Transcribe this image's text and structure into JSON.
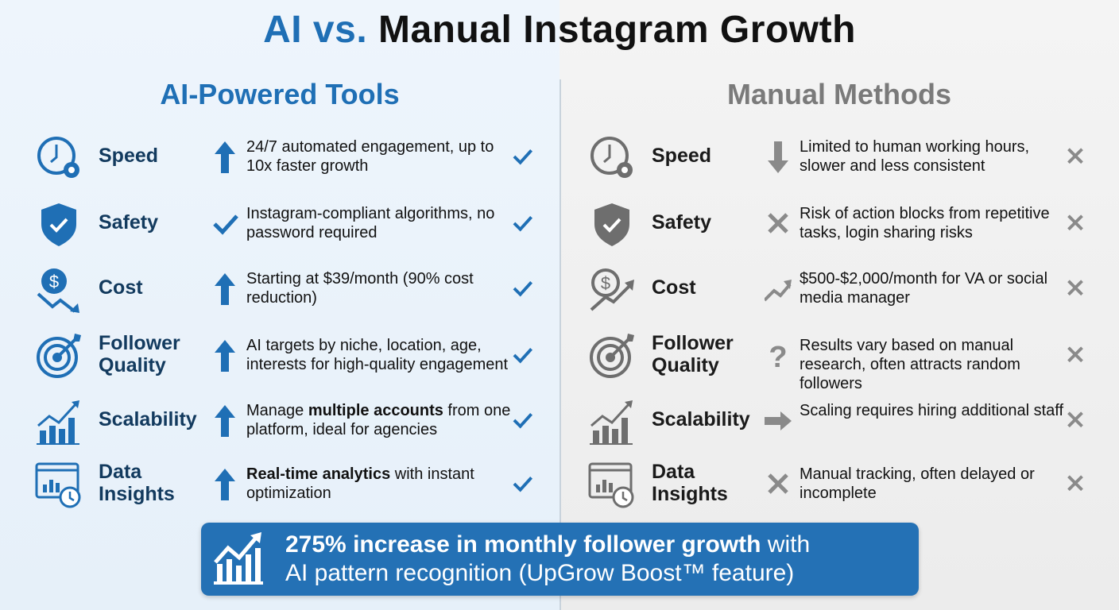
{
  "title": {
    "part1": "AI vs.",
    "part2": "Manual Instagram Growth"
  },
  "colors": {
    "ai_blue": "#1f6fb5",
    "manual_grey": "#7a7a7a",
    "banner": "#2471b5"
  },
  "ai": {
    "heading": "AI-Powered Tools",
    "rows": [
      {
        "icon": "clock-gear-icon",
        "label": "Speed",
        "indicator": "arrow-up",
        "desc": "24/7 automated engagement, up to 10x faster growth",
        "bold": "",
        "mark": "check"
      },
      {
        "icon": "shield-check-icon",
        "label": "Safety",
        "indicator": "check",
        "desc": "Instagram-compliant algorithms, no password required",
        "bold": "",
        "mark": "check"
      },
      {
        "icon": "dollar-trend-down-icon",
        "label": "Cost",
        "indicator": "arrow-up",
        "desc": "Starting at $39/month (90% cost reduction)",
        "bold": "",
        "mark": "check"
      },
      {
        "icon": "target-icon",
        "label": "Follower Quality",
        "indicator": "arrow-up",
        "desc": "AI targets by niche, location, age, interests for high-quality engagement",
        "bold": "",
        "mark": "check"
      },
      {
        "icon": "bar-chart-growth-icon",
        "label": "Scalability",
        "indicator": "arrow-up",
        "desc_pre": "Manage ",
        "bold": "multiple accounts",
        "desc": " from one platform, ideal for agencies",
        "mark": "check"
      },
      {
        "icon": "analytics-clock-icon",
        "label": "Data Insights",
        "indicator": "arrow-up",
        "desc_pre": "",
        "bold": "Real-time analytics",
        "desc": " with instant optimization",
        "mark": "check"
      }
    ]
  },
  "manual": {
    "heading": "Manual Methods",
    "rows": [
      {
        "icon": "clock-gear-icon",
        "label": "Speed",
        "indicator": "arrow-down",
        "desc": "Limited to human working hours, slower and less consistent",
        "bold": "",
        "mark": "x"
      },
      {
        "icon": "shield-check-icon",
        "label": "Safety",
        "indicator": "x",
        "desc": "Risk of action blocks from repetitive tasks, login sharing risks",
        "bold": "",
        "mark": "x"
      },
      {
        "icon": "dollar-trend-up-icon",
        "label": "Cost",
        "indicator": "trend-up",
        "desc": "$500-$2,000/month for VA or social media manager",
        "bold": "",
        "mark": "x"
      },
      {
        "icon": "target-icon",
        "label": "Follower Quality",
        "indicator": "question",
        "desc": "Results vary based on manual research, often attracts random followers",
        "bold": "",
        "mark": "x"
      },
      {
        "icon": "bar-chart-growth-icon",
        "label": "Scalability",
        "indicator": "arrow-right",
        "desc": "Scaling requires hiring additional staff",
        "bold": "",
        "mark": "x"
      },
      {
        "icon": "analytics-clock-icon",
        "label": "Data Insights",
        "indicator": "x",
        "desc": "Manual tracking, often delayed or incomplete",
        "bold": "",
        "mark": "x"
      }
    ]
  },
  "banner": {
    "bold": "275% increase in monthly follower growth",
    "rest1": " with",
    "line2": "AI pattern recognition (UpGrow Boost™ feature)"
  }
}
